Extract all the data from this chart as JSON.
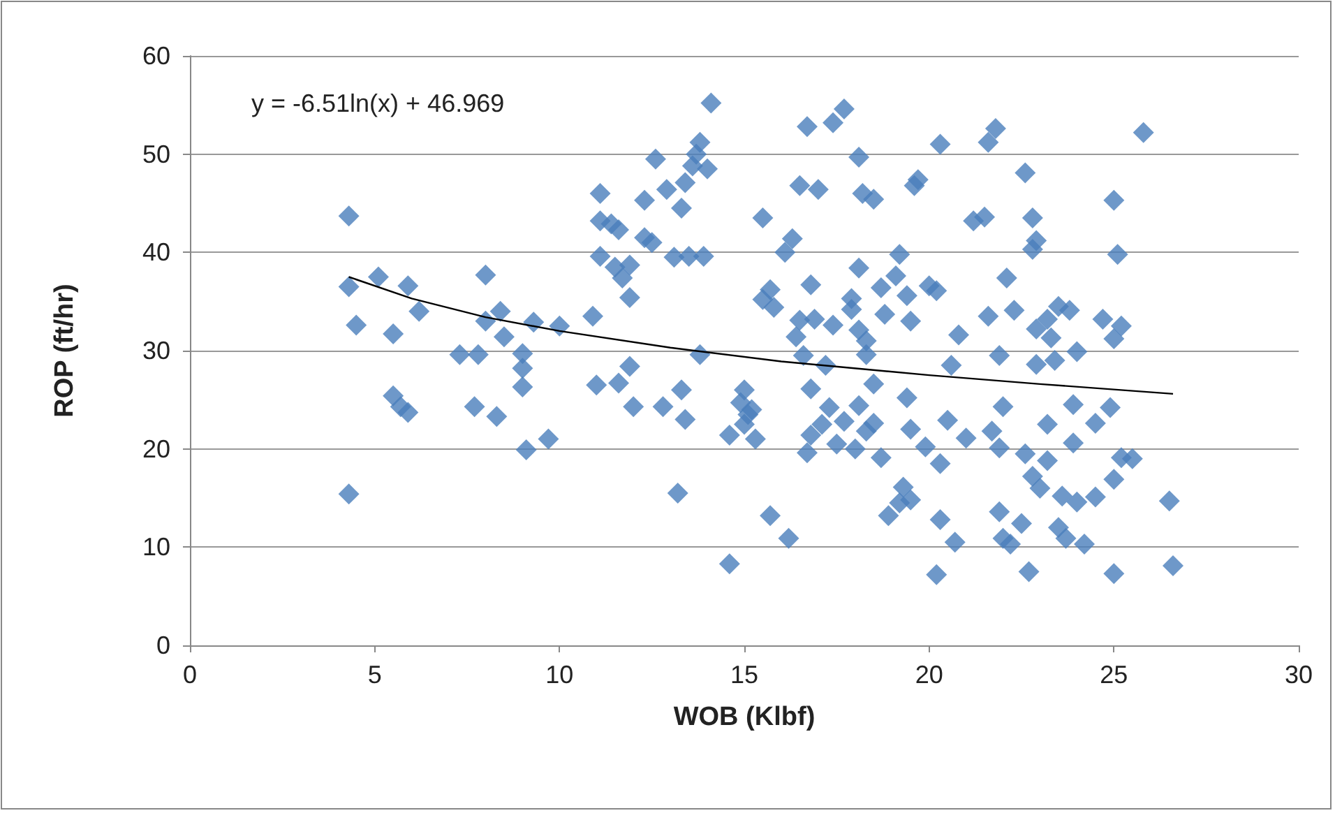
{
  "chart_data": {
    "type": "scatter",
    "xlabel": "WOB (Klbf)",
    "ylabel": "ROP (ft/hr)",
    "annotations": [
      "y = -6.51ln(x) + 46.969"
    ],
    "xlim": [
      0,
      30
    ],
    "xticks": [
      0,
      5,
      10,
      15,
      20,
      25,
      30
    ],
    "ylim": [
      0,
      60
    ],
    "yticks": [
      0,
      10,
      20,
      30,
      40,
      50,
      60
    ],
    "grid": "y",
    "marker": "diamond",
    "series": [
      {
        "color": "#4a7ebb",
        "x": [
          4.3,
          4.3,
          4.5,
          4.3,
          5.1,
          5.5,
          5.5,
          5.7,
          5.9,
          5.9,
          6.2,
          7.3,
          7.8,
          7.7,
          8,
          8,
          8.3,
          8.4,
          8.5,
          9,
          9,
          9,
          9.1,
          9.3,
          9.7,
          10,
          10.9,
          11.1,
          11.1,
          11.1,
          11.4,
          11.5,
          11.6,
          11.7,
          11.9,
          11.9,
          11,
          11.6,
          11.9,
          12,
          12.3,
          12.3,
          12.5,
          12.6,
          12.8,
          12.9,
          13.1,
          13.3,
          13.4,
          13.5,
          13.3,
          13.4,
          13.2,
          13.6,
          13.7,
          13.8,
          13.9,
          13.8,
          14,
          14.1,
          14.6,
          14.6,
          14.9,
          15,
          15.1,
          15.3,
          15.2,
          15,
          15.5,
          15.5,
          15.7,
          15.8,
          16.1,
          16.3,
          15.7,
          16.2,
          16.5,
          16.7,
          16.5,
          16.4,
          16.6,
          16.8,
          16.9,
          17,
          17.4,
          17.7,
          17.4,
          17.2,
          16.8,
          16.8,
          16.7,
          17.1,
          17.3,
          17.5,
          17.7,
          17.9,
          17.9,
          18.1,
          18.1,
          18.3,
          18.1,
          18.2,
          18.5,
          18.3,
          18.5,
          18.7,
          18.8,
          18.1,
          18.3,
          18.5,
          18,
          18.7,
          18.9,
          19.2,
          19.3,
          19.5,
          19.2,
          19.1,
          19.4,
          19.6,
          19.7,
          19.5,
          19.4,
          19.5,
          19.9,
          20,
          20.2,
          20.3,
          20.2,
          20.3,
          20.7,
          20.8,
          20.6,
          20.5,
          20.3,
          21,
          21.2,
          21.5,
          21.6,
          21.8,
          21.6,
          21.9,
          22,
          21.7,
          21.9,
          21.9,
          22,
          22.1,
          22.3,
          22.6,
          22.2,
          22.5,
          22.6,
          22.8,
          22.8,
          22.9,
          22.9,
          22.9,
          22.7,
          22.8,
          23,
          23.2,
          23.3,
          23.2,
          23.2,
          23.5,
          23.4,
          23.5,
          23.7,
          23.6,
          23.8,
          23.9,
          23.9,
          24,
          24,
          24.2,
          24.5,
          24.5,
          24.9,
          24.7,
          25,
          25.1,
          25,
          25.2,
          25.2,
          25,
          25,
          25.8,
          26.5,
          26.6,
          25.5
        ],
        "values": [
          43.7,
          36.5,
          32.6,
          15.4,
          37.5,
          31.7,
          25.4,
          24.3,
          23.7,
          36.6,
          34,
          29.6,
          29.6,
          24.3,
          37.7,
          33,
          23.3,
          34,
          31.4,
          29.7,
          28.2,
          26.3,
          19.9,
          32.9,
          21,
          32.5,
          33.5,
          46,
          43.2,
          39.6,
          42.9,
          38.5,
          42.3,
          37.4,
          38.7,
          35.4,
          26.5,
          26.7,
          28.4,
          24.3,
          45.3,
          41.5,
          41,
          49.5,
          24.3,
          46.4,
          39.5,
          44.5,
          47.1,
          39.6,
          26,
          23,
          15.5,
          48.8,
          50,
          51.2,
          39.6,
          29.6,
          48.5,
          55.2,
          21.4,
          8.3,
          24.7,
          26,
          23.5,
          21,
          24,
          22.5,
          43.5,
          35.2,
          36.2,
          34.4,
          40,
          41.4,
          13.2,
          10.9,
          46.8,
          52.8,
          33.1,
          31.4,
          29.5,
          36.7,
          33.2,
          46.4,
          53.2,
          54.6,
          32.6,
          28.5,
          26.1,
          21.4,
          19.6,
          22.5,
          24.2,
          20.5,
          22.8,
          35.3,
          34.2,
          38.4,
          32.1,
          31,
          49.7,
          46,
          45.4,
          29.6,
          26.6,
          36.4,
          33.7,
          24.4,
          21.8,
          22.6,
          20,
          19.1,
          13.2,
          14.5,
          16.1,
          14.8,
          39.8,
          37.6,
          35.6,
          46.8,
          47.4,
          33,
          25.2,
          22,
          20.2,
          36.6,
          36.1,
          51,
          7.2,
          12.8,
          10.5,
          31.6,
          28.5,
          22.9,
          18.5,
          21.1,
          43.2,
          43.6,
          51.2,
          52.6,
          33.5,
          29.5,
          24.3,
          21.8,
          20.1,
          13.6,
          10.9,
          37.4,
          34.1,
          48.1,
          10.3,
          12.4,
          19.5,
          43.5,
          40.3,
          41.2,
          32.2,
          28.6,
          7.5,
          17.2,
          16,
          33.2,
          31.3,
          22.5,
          18.8,
          34.5,
          29,
          12,
          10.9,
          15.2,
          34.1,
          24.5,
          20.6,
          29.9,
          14.6,
          10.3,
          15.1,
          22.6,
          24.2,
          33.2,
          45.3,
          39.8,
          31.2,
          32.5,
          19.1,
          16.9,
          7.3,
          52.2,
          14.7,
          8.1,
          19
        ]
      },
      {
        "type": "line",
        "color": "#000000",
        "marker": "none",
        "x": [
          4.3,
          6,
          8,
          10,
          13,
          16,
          20,
          23,
          26.6
        ],
        "values": [
          37.5,
          35.3,
          33.4,
          32,
          30.3,
          28.9,
          27.5,
          26.6,
          25.6
        ]
      }
    ]
  }
}
